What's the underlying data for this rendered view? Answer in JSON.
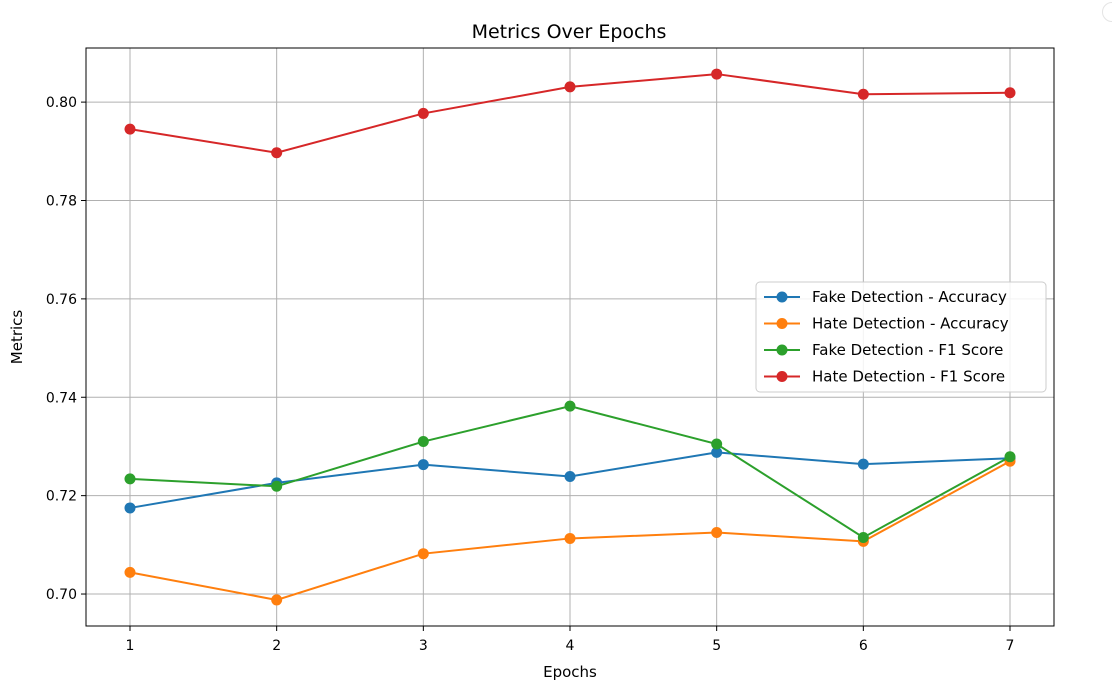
{
  "chart_data": {
    "type": "line",
    "title": "Metrics Over Epochs",
    "xlabel": "Epochs",
    "ylabel": "Metrics",
    "x": [
      1,
      2,
      3,
      4,
      5,
      6,
      7
    ],
    "x_ticks": [
      "1",
      "2",
      "3",
      "4",
      "5",
      "6",
      "7"
    ],
    "y_ticks": [
      "0.70",
      "0.72",
      "0.74",
      "0.76",
      "0.78",
      "0.80"
    ],
    "xlim": [
      0.7,
      7.3
    ],
    "ylim": [
      0.6935,
      0.811
    ],
    "grid": true,
    "legend_position": "center-right",
    "series": [
      {
        "name": "Fake Detection - Accuracy",
        "color": "#1f77b4",
        "values": [
          0.7175,
          0.7226,
          0.7263,
          0.7239,
          0.7288,
          0.7264,
          0.7276
        ]
      },
      {
        "name": "Hate Detection - Accuracy",
        "color": "#ff7f0e",
        "values": [
          0.7044,
          0.6988,
          0.7082,
          0.7113,
          0.7125,
          0.7107,
          0.727
        ]
      },
      {
        "name": "Fake Detection - F1 Score",
        "color": "#2ca02c",
        "values": [
          0.7234,
          0.7219,
          0.731,
          0.7382,
          0.7305,
          0.7115,
          0.7279
        ]
      },
      {
        "name": "Hate Detection - F1 Score",
        "color": "#d62728",
        "values": [
          0.7945,
          0.7897,
          0.7977,
          0.8031,
          0.8057,
          0.8016,
          0.8019
        ]
      }
    ]
  }
}
